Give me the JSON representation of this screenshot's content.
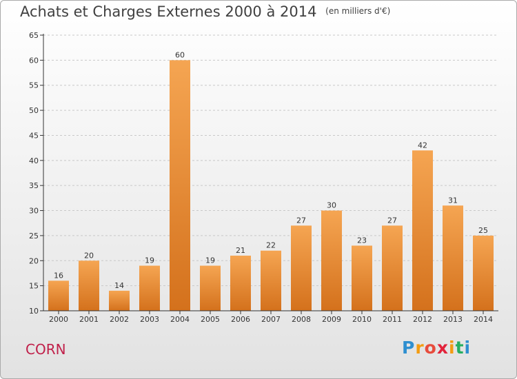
{
  "header": {
    "title": "Achats et Charges Externes 2000 à 2014",
    "subtitle": "(en milliers d'€)"
  },
  "footer": {
    "commune": "CORN",
    "logo_letters": [
      "P",
      "r",
      "o",
      "x",
      "i",
      "t",
      "i"
    ],
    "logo_colors": [
      "#2e8fd0",
      "#f39c12",
      "#e74c3c",
      "#e2233b",
      "#f39c12",
      "#27ae60",
      "#2e8fd0"
    ]
  },
  "colors": {
    "bar_light": "#f5a552",
    "bar_dark": "#d4711c",
    "axis": "#333333",
    "grid": "#c8c8c8",
    "text": "#333333"
  },
  "chart_data": {
    "type": "bar",
    "title": "Achats et Charges Externes 2000 à 2014",
    "subtitle": "(en milliers d'€)",
    "categories": [
      "2000",
      "2001",
      "2002",
      "2003",
      "2004",
      "2005",
      "2006",
      "2007",
      "2008",
      "2009",
      "2010",
      "2011",
      "2012",
      "2013",
      "2014"
    ],
    "values": [
      16,
      20,
      14,
      19,
      60,
      19,
      21,
      22,
      27,
      30,
      23,
      27,
      42,
      31,
      25
    ],
    "ylim": [
      10,
      65
    ],
    "yticks": [
      10,
      15,
      20,
      25,
      30,
      35,
      40,
      45,
      50,
      55,
      60,
      65
    ],
    "grid": true
  }
}
